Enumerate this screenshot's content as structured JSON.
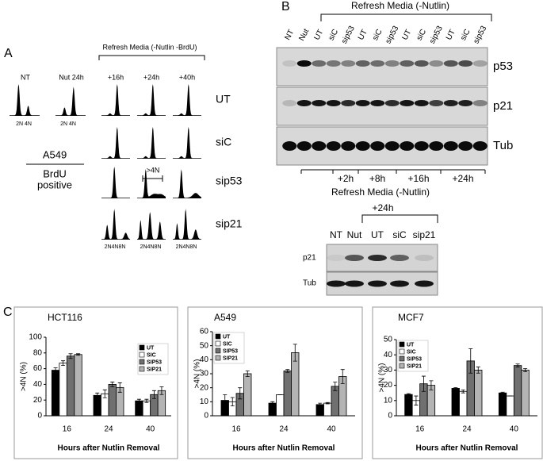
{
  "panel_labels": [
    "A",
    "B",
    "C"
  ],
  "panel_a": {
    "header": "Refresh Media (-Nutlin -BrdU)",
    "columns": [
      "NT",
      "Nut 24h",
      "+16h",
      "+24h",
      "+40h"
    ],
    "rows": [
      "UT",
      "siC",
      "sip53",
      "sip21"
    ],
    "ploidy_labels": [
      "2N 4N",
      "2N 4N"
    ],
    "cell_line": "A549",
    "stain": [
      "BrdU",
      "positive"
    ],
    "gate_label": ">4N",
    "bottom_labels": [
      "2N4N8N",
      "2N4N8N",
      "2N4N8N"
    ]
  },
  "panel_b": {
    "header": "Refresh Media (-Nutlin)",
    "lanes": [
      "NT",
      "Nut",
      "UT",
      "siC",
      "sip53",
      "UT",
      "siC",
      "sip53",
      "UT",
      "siC",
      "sip53",
      "UT",
      "siC",
      "sip53"
    ],
    "proteins": [
      "p53",
      "p21",
      "Tub"
    ],
    "timepoints": [
      "+2h",
      "+8h",
      "+16h",
      "+24h"
    ],
    "lower": {
      "header": "Refresh Media (-Nutlin)",
      "timepoint": "+24h",
      "lanes": [
        "NT",
        "Nut",
        "UT",
        "siC",
        "sip21"
      ],
      "proteins": [
        "p21",
        "Tub"
      ]
    }
  },
  "chart_data": [
    {
      "type": "bar",
      "title": "HCT116",
      "y_label": ">4N (%)",
      "x_label": "Hours after Nutlin Removal",
      "categories": [
        "16",
        "24",
        "40"
      ],
      "ylim": [
        0,
        100
      ],
      "yticks": [
        0,
        20,
        40,
        60,
        80,
        100
      ],
      "legend": "upper right",
      "series": [
        {
          "name": "UT",
          "color": "#000000",
          "values": [
            58,
            26,
            19
          ],
          "errors": [
            3,
            3,
            2
          ]
        },
        {
          "name": "SIC",
          "color": "#ffffff",
          "values": [
            67,
            28,
            19
          ],
          "errors": [
            3,
            5,
            2
          ]
        },
        {
          "name": "SIP53",
          "color": "#707070",
          "values": [
            76,
            40,
            27
          ],
          "errors": [
            3,
            3,
            5
          ]
        },
        {
          "name": "SIP21",
          "color": "#b4b4b4",
          "values": [
            78,
            36,
            32
          ],
          "errors": [
            1,
            6,
            5
          ]
        }
      ]
    },
    {
      "type": "bar",
      "title": "A549",
      "y_label": ">4N (%)",
      "x_label": "Hours after Nutlin Removal",
      "categories": [
        "16",
        "24",
        "40"
      ],
      "ylim": [
        0,
        60
      ],
      "yticks": [
        0,
        10,
        20,
        30,
        40,
        50,
        60
      ],
      "legend": "upper left",
      "series": [
        {
          "name": "UT",
          "color": "#000000",
          "values": [
            11,
            9,
            8
          ],
          "errors": [
            4,
            1,
            1
          ]
        },
        {
          "name": "SIC",
          "color": "#ffffff",
          "values": [
            10,
            15,
            9
          ],
          "errors": [
            3,
            0,
            0.5
          ]
        },
        {
          "name": "SIP53",
          "color": "#707070",
          "values": [
            16,
            32,
            21
          ],
          "errors": [
            4,
            1,
            3
          ]
        },
        {
          "name": "SIP21",
          "color": "#b4b4b4",
          "values": [
            30,
            45,
            28
          ],
          "errors": [
            2,
            6,
            5
          ]
        }
      ]
    },
    {
      "type": "bar",
      "title": "MCF7",
      "y_label": ">4N (%)",
      "x_label": "Hours after Nutlin Removal",
      "categories": [
        "16",
        "24",
        "40"
      ],
      "ylim": [
        0,
        50
      ],
      "yticks": [
        0,
        10,
        20,
        30,
        40,
        50
      ],
      "legend": "upper left",
      "series": [
        {
          "name": "UT",
          "color": "#000000",
          "values": [
            14,
            18,
            15
          ],
          "errors": [
            0.5,
            0.5,
            0.5
          ]
        },
        {
          "name": "SIC",
          "color": "#ffffff",
          "values": [
            10,
            16,
            13
          ],
          "errors": [
            3,
            1,
            0
          ]
        },
        {
          "name": "SIP53",
          "color": "#707070",
          "values": [
            21,
            36,
            33
          ],
          "errors": [
            5,
            8,
            1
          ]
        },
        {
          "name": "SIP21",
          "color": "#b4b4b4",
          "values": [
            20,
            30,
            30
          ],
          "errors": [
            3,
            2,
            1
          ]
        }
      ]
    }
  ]
}
